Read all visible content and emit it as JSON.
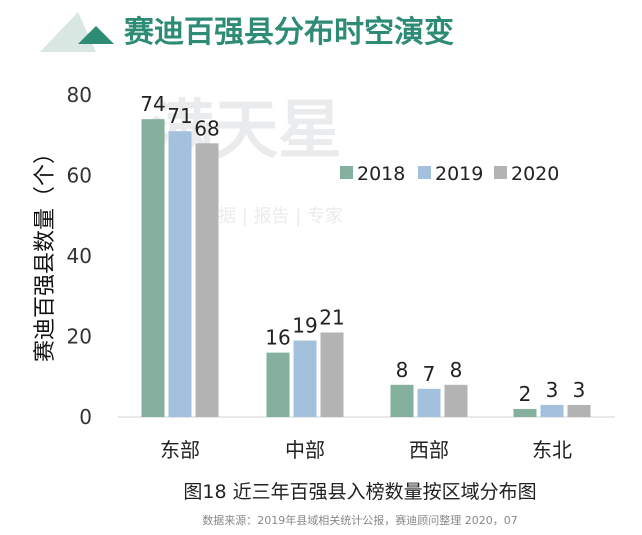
{
  "header": {
    "title": "赛迪百强县分布时空演变"
  },
  "watermark": {
    "main": "满天星",
    "sub": "数据 | 报告 | 专家"
  },
  "colors": {
    "s2018": "#86b09e",
    "s2019": "#a3c1dc",
    "s2020": "#b3b3b3",
    "accent": "#2e8b75"
  },
  "chart_data": {
    "type": "bar",
    "categories": [
      "东部",
      "中部",
      "西部",
      "东北"
    ],
    "series": [
      {
        "name": "2018",
        "values": [
          74,
          16,
          8,
          2
        ]
      },
      {
        "name": "2019",
        "values": [
          71,
          19,
          7,
          3
        ]
      },
      {
        "name": "2020",
        "values": [
          68,
          21,
          8,
          3
        ]
      }
    ],
    "ylabel": "赛迪百强县数量（个）",
    "ylim": [
      0,
      80
    ],
    "yticks": [
      0,
      20,
      40,
      60,
      80
    ],
    "legend_position": "right",
    "grid": false,
    "caption": "图18 近三年百强县入榜数量按区域分布图",
    "source": "数据来源：2019年县域相关统计公报，赛迪顾问整理 2020，07"
  }
}
